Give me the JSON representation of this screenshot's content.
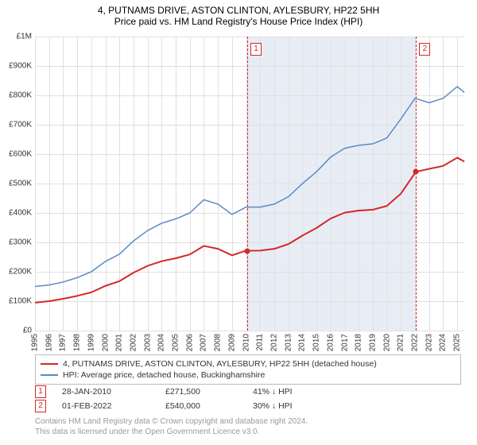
{
  "title": "4, PUTNAMS DRIVE, ASTON CLINTON, AYLESBURY, HP22 5HH",
  "subtitle": "Price paid vs. HM Land Registry's House Price Index (HPI)",
  "chart": {
    "type": "line",
    "background_color": "#ffffff",
    "grid_color": "#e0e0e0",
    "shaded_region_color": "#e8edf5",
    "x_start": 1995,
    "x_end": 2025.5,
    "x_ticks": [
      1995,
      1996,
      1997,
      1998,
      1999,
      2000,
      2001,
      2002,
      2003,
      2004,
      2005,
      2006,
      2007,
      2008,
      2009,
      2010,
      2011,
      2012,
      2013,
      2014,
      2015,
      2016,
      2017,
      2018,
      2019,
      2020,
      2021,
      2022,
      2023,
      2024,
      2025
    ],
    "y_min": 0,
    "y_max": 1000000,
    "y_ticks": [
      0,
      100000,
      200000,
      300000,
      400000,
      500000,
      600000,
      700000,
      800000,
      900000,
      1000000
    ],
    "y_tick_labels": [
      "£0",
      "£100K",
      "£200K",
      "£300K",
      "£400K",
      "£500K",
      "£600K",
      "£700K",
      "£800K",
      "£900K",
      "£1M"
    ],
    "shaded_start": 2010.08,
    "shaded_end": 2022.08,
    "series": {
      "hpi": {
        "label": "HPI: Average price, detached house, Buckinghamshire",
        "color": "#5b8bc4",
        "line_width": 1.5,
        "data": [
          [
            1995,
            150000
          ],
          [
            1996,
            155000
          ],
          [
            1997,
            165000
          ],
          [
            1998,
            180000
          ],
          [
            1999,
            200000
          ],
          [
            2000,
            235000
          ],
          [
            2001,
            260000
          ],
          [
            2002,
            305000
          ],
          [
            2003,
            340000
          ],
          [
            2004,
            365000
          ],
          [
            2005,
            380000
          ],
          [
            2006,
            400000
          ],
          [
            2007,
            445000
          ],
          [
            2008,
            430000
          ],
          [
            2009,
            395000
          ],
          [
            2010,
            420000
          ],
          [
            2011,
            420000
          ],
          [
            2012,
            430000
          ],
          [
            2013,
            455000
          ],
          [
            2014,
            500000
          ],
          [
            2015,
            540000
          ],
          [
            2016,
            590000
          ],
          [
            2017,
            620000
          ],
          [
            2018,
            630000
          ],
          [
            2019,
            635000
          ],
          [
            2020,
            655000
          ],
          [
            2021,
            720000
          ],
          [
            2022,
            790000
          ],
          [
            2023,
            775000
          ],
          [
            2024,
            790000
          ],
          [
            2025,
            830000
          ],
          [
            2025.5,
            810000
          ]
        ]
      },
      "property": {
        "label": "4, PUTNAMS DRIVE, ASTON CLINTON, AYLESBURY, HP22 5HH (detached house)",
        "color": "#d62728",
        "line_width": 2,
        "data": [
          [
            1995,
            95000
          ],
          [
            1996,
            100000
          ],
          [
            1997,
            108000
          ],
          [
            1998,
            118000
          ],
          [
            1999,
            130000
          ],
          [
            2000,
            152000
          ],
          [
            2001,
            168000
          ],
          [
            2002,
            197000
          ],
          [
            2003,
            220000
          ],
          [
            2004,
            236000
          ],
          [
            2005,
            246000
          ],
          [
            2006,
            259000
          ],
          [
            2007,
            288000
          ],
          [
            2008,
            278000
          ],
          [
            2009,
            256000
          ],
          [
            2010,
            272000
          ],
          [
            2010.08,
            271500
          ],
          [
            2011,
            272000
          ],
          [
            2012,
            278000
          ],
          [
            2013,
            294000
          ],
          [
            2014,
            323000
          ],
          [
            2015,
            349000
          ],
          [
            2016,
            381000
          ],
          [
            2017,
            401000
          ],
          [
            2018,
            408000
          ],
          [
            2019,
            411000
          ],
          [
            2020,
            424000
          ],
          [
            2021,
            466000
          ],
          [
            2022,
            536000
          ],
          [
            2022.08,
            540000
          ],
          [
            2023,
            550000
          ],
          [
            2024,
            560000
          ],
          [
            2025,
            588000
          ],
          [
            2025.5,
            575000
          ]
        ]
      }
    },
    "sale_points": [
      {
        "x": 2010.08,
        "y": 271500,
        "color": "#d62728"
      },
      {
        "x": 2022.08,
        "y": 540000,
        "color": "#d62728"
      }
    ],
    "markers": [
      {
        "n": "1",
        "x": 2010.08,
        "color": "#d62728"
      },
      {
        "n": "2",
        "x": 2022.08,
        "color": "#d62728"
      }
    ]
  },
  "legend": {
    "items": [
      {
        "color": "#d62728",
        "width": 2,
        "label_key": "chart.series.property.label"
      },
      {
        "color": "#5b8bc4",
        "width": 1.5,
        "label_key": "chart.series.hpi.label"
      }
    ]
  },
  "sales_table": [
    {
      "n": "1",
      "color": "#d62728",
      "date": "28-JAN-2010",
      "price": "£271,500",
      "pct": "41% ↓ HPI"
    },
    {
      "n": "2",
      "color": "#d62728",
      "date": "01-FEB-2022",
      "price": "£540,000",
      "pct": "30% ↓ HPI"
    }
  ],
  "footnote_line1": "Contains HM Land Registry data © Crown copyright and database right 2024.",
  "footnote_line2": "This data is licensed under the Open Government Licence v3.0."
}
